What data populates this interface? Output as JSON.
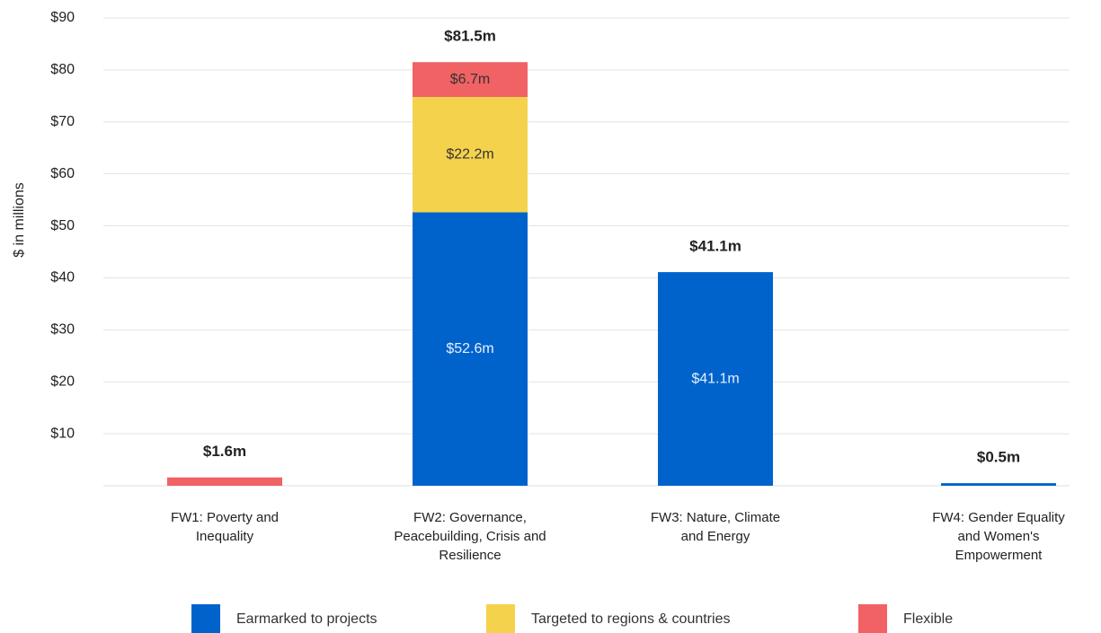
{
  "chart_data": {
    "type": "stacked_bar",
    "y_label": "$ in millions",
    "categories": [
      "FW1: Poverty and Inequality",
      "FW2: Governance, Peacebuilding, Crisis and Resilience",
      "FW3: Nature, Climate and Energy",
      "FW4: Gender Equality and Women's Empowerment"
    ],
    "series": [
      {
        "name": "Earmarked to projects",
        "color": "#0063cc",
        "values": [
          0,
          52.6,
          41.1,
          0.5
        ],
        "value_labels": [
          null,
          "$52.6m",
          "$41.1m",
          null
        ]
      },
      {
        "name": "Targeted to regions & countries",
        "color": "#f5d24c",
        "values": [
          0,
          22.2,
          0,
          0
        ],
        "value_labels": [
          null,
          "$22.2m",
          null,
          null
        ]
      },
      {
        "name": "Flexible",
        "color": "#f06264",
        "values": [
          1.6,
          6.7,
          0,
          0
        ],
        "value_labels": [
          null,
          "$6.7m",
          null,
          null
        ]
      }
    ],
    "totals": {
      "values": [
        1.6,
        81.5,
        41.1,
        0.5
      ],
      "value_labels": [
        "$1.6m",
        "$81.5m",
        "$41.1m",
        "$0.5m"
      ]
    },
    "ylim": [
      0,
      90
    ],
    "yticks": [
      {
        "value": 10,
        "label": "$10"
      },
      {
        "value": 20,
        "label": "$20"
      },
      {
        "value": 30,
        "label": "$30"
      },
      {
        "value": 40,
        "label": "$40"
      },
      {
        "value": 50,
        "label": "$50"
      },
      {
        "value": 60,
        "label": "$60"
      },
      {
        "value": 70,
        "label": "$70"
      },
      {
        "value": 80,
        "label": "$80"
      },
      {
        "value": 90,
        "label": "$90"
      }
    ],
    "grid": true,
    "legend": "bottom"
  }
}
